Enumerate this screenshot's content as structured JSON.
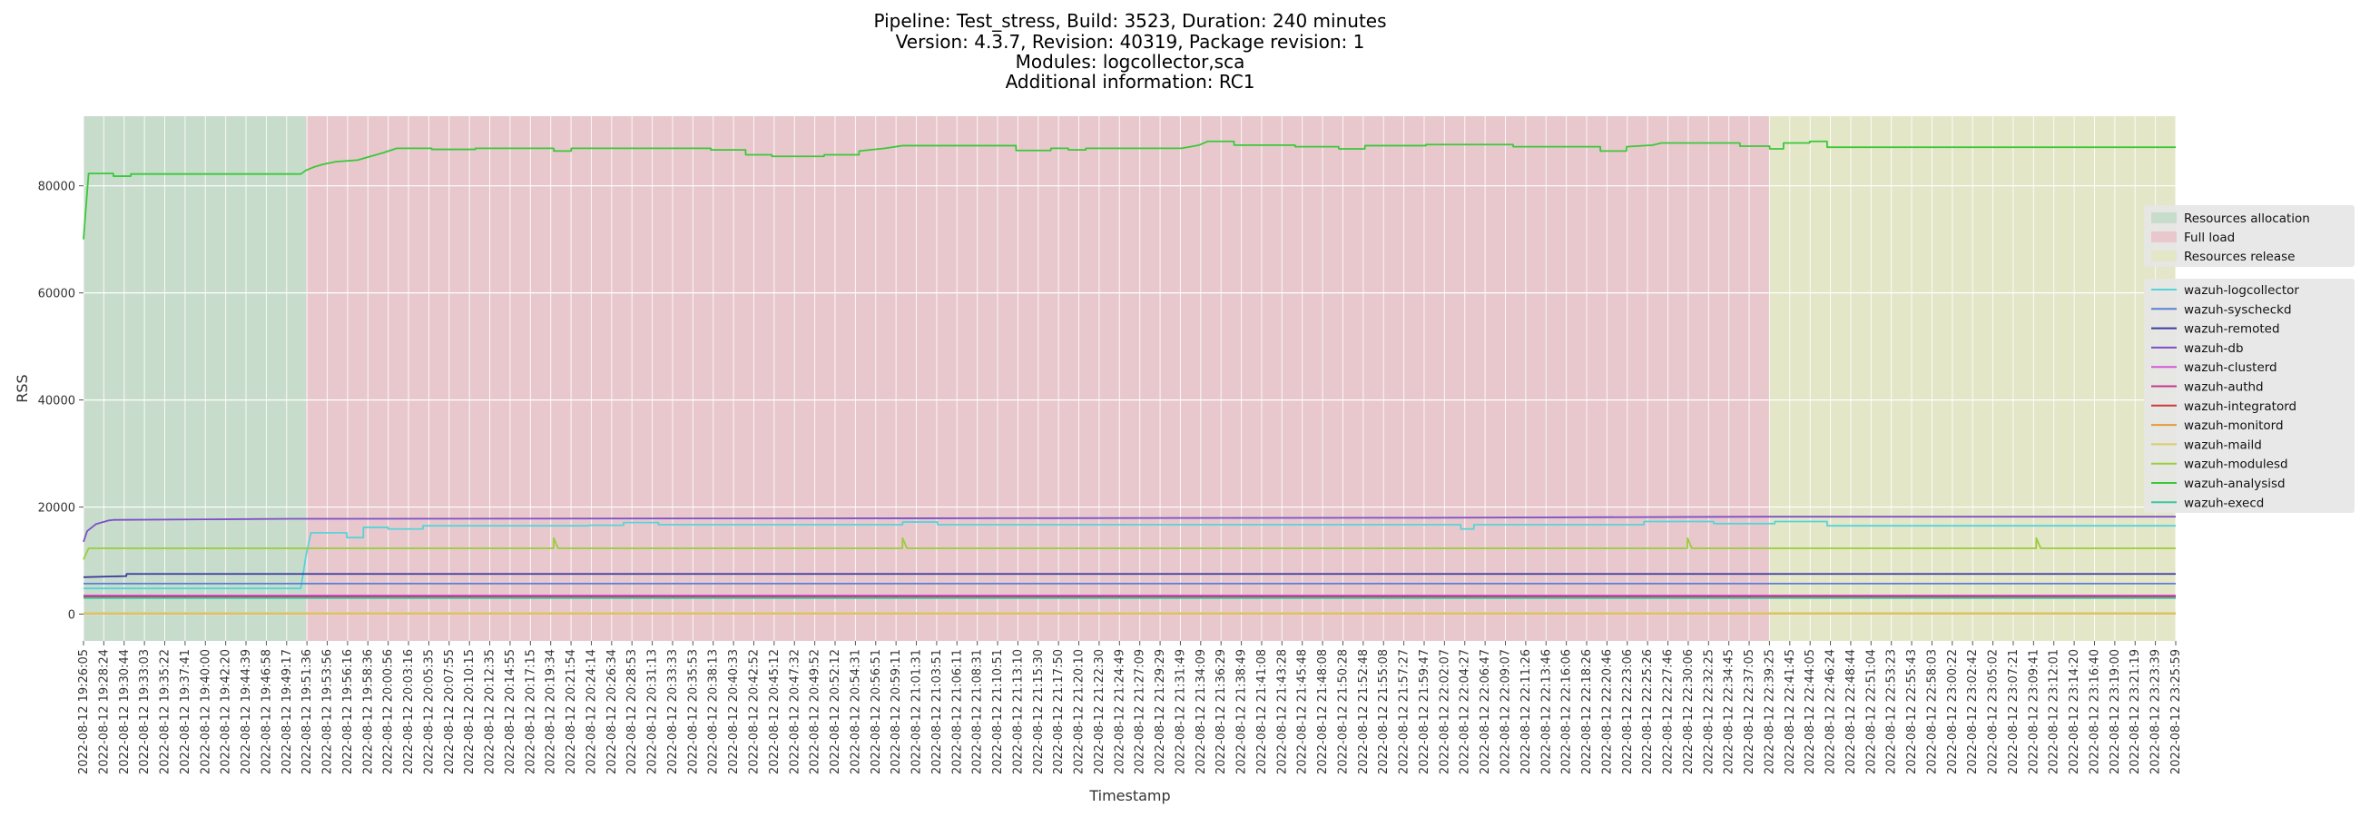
{
  "chart_data": {
    "type": "line",
    "title_lines": [
      "Pipeline: Test_stress, Build: 3523, Duration: 240 minutes",
      "Version: 4.3.7, Revision: 40319, Package revision: 1",
      "Modules: logcollector,sca",
      "Additional information: RC1"
    ],
    "xlabel": "Timestamp",
    "ylabel": "RSS",
    "x_range": [
      "2022-08-12 19:26:05",
      "2022-08-12 23:25:59"
    ],
    "ylim": [
      -5000,
      93000
    ],
    "y_ticks": [
      0,
      20000,
      40000,
      60000,
      80000
    ],
    "grid": true,
    "legend_position": "right",
    "x_tick_labels": [
      "2022-08-12 19:26:05",
      "2022-08-12 19:28:24",
      "2022-08-12 19:30:44",
      "2022-08-12 19:33:03",
      "2022-08-12 19:35:22",
      "2022-08-12 19:37:41",
      "2022-08-12 19:40:00",
      "2022-08-12 19:42:20",
      "2022-08-12 19:44:39",
      "2022-08-12 19:46:58",
      "2022-08-12 19:49:17",
      "2022-08-12 19:51:36",
      "2022-08-12 19:53:56",
      "2022-08-12 19:56:16",
      "2022-08-12 19:58:36",
      "2022-08-12 20:00:56",
      "2022-08-12 20:03:16",
      "2022-08-12 20:05:35",
      "2022-08-12 20:07:55",
      "2022-08-12 20:10:15",
      "2022-08-12 20:12:35",
      "2022-08-12 20:14:55",
      "2022-08-12 20:17:15",
      "2022-08-12 20:19:34",
      "2022-08-12 20:21:54",
      "2022-08-12 20:24:14",
      "2022-08-12 20:26:34",
      "2022-08-12 20:28:53",
      "2022-08-12 20:31:13",
      "2022-08-12 20:33:33",
      "2022-08-12 20:35:53",
      "2022-08-12 20:38:13",
      "2022-08-12 20:40:33",
      "2022-08-12 20:42:52",
      "2022-08-12 20:45:12",
      "2022-08-12 20:47:32",
      "2022-08-12 20:49:52",
      "2022-08-12 20:52:12",
      "2022-08-12 20:54:31",
      "2022-08-12 20:56:51",
      "2022-08-12 20:59:11",
      "2022-08-12 21:01:31",
      "2022-08-12 21:03:51",
      "2022-08-12 21:06:11",
      "2022-08-12 21:08:31",
      "2022-08-12 21:10:51",
      "2022-08-12 21:13:10",
      "2022-08-12 21:15:30",
      "2022-08-12 21:17:50",
      "2022-08-12 21:20:10",
      "2022-08-12 21:22:30",
      "2022-08-12 21:24:49",
      "2022-08-12 21:27:09",
      "2022-08-12 21:29:29",
      "2022-08-12 21:31:49",
      "2022-08-12 21:34:09",
      "2022-08-12 21:36:29",
      "2022-08-12 21:38:49",
      "2022-08-12 21:41:08",
      "2022-08-12 21:43:28",
      "2022-08-12 21:45:48",
      "2022-08-12 21:48:08",
      "2022-08-12 21:50:28",
      "2022-08-12 21:52:48",
      "2022-08-12 21:55:08",
      "2022-08-12 21:57:27",
      "2022-08-12 21:59:47",
      "2022-08-12 22:02:07",
      "2022-08-12 22:04:27",
      "2022-08-12 22:06:47",
      "2022-08-12 22:09:07",
      "2022-08-12 22:11:26",
      "2022-08-12 22:13:46",
      "2022-08-12 22:16:06",
      "2022-08-12 22:18:26",
      "2022-08-12 22:20:46",
      "2022-08-12 22:23:06",
      "2022-08-12 22:25:26",
      "2022-08-12 22:27:46",
      "2022-08-12 22:30:06",
      "2022-08-12 22:32:25",
      "2022-08-12 22:34:45",
      "2022-08-12 22:37:05",
      "2022-08-12 22:39:25",
      "2022-08-12 22:41:45",
      "2022-08-12 22:44:05",
      "2022-08-12 22:46:24",
      "2022-08-12 22:48:44",
      "2022-08-12 22:51:04",
      "2022-08-12 22:53:23",
      "2022-08-12 22:55:43",
      "2022-08-12 22:58:03",
      "2022-08-12 23:00:22",
      "2022-08-12 23:02:42",
      "2022-08-12 23:05:02",
      "2022-08-12 23:07:21",
      "2022-08-12 23:09:41",
      "2022-08-12 23:12:01",
      "2022-08-12 23:14:20",
      "2022-08-12 23:16:40",
      "2022-08-12 23:19:00",
      "2022-08-12 23:21:19",
      "2022-08-12 23:23:39",
      "2022-08-12 23:25:59"
    ],
    "phases": [
      {
        "name": "Resources allocation",
        "start": "2022-08-12 19:26:05",
        "end": "2022-08-12 19:51:36",
        "color": "#c8dccc"
      },
      {
        "name": "Full load",
        "start": "2022-08-12 19:51:36",
        "end": "2022-08-12 22:39:25",
        "color": "#e8c8cc"
      },
      {
        "name": "Resources release",
        "start": "2022-08-12 22:39:25",
        "end": "2022-08-12 23:25:59",
        "color": "#e4e6c8"
      }
    ],
    "series": [
      {
        "name": "wazuh-logcollector",
        "color": "#56d4d8",
        "points": [
          [
            "2022-08-12 19:26:05",
            4800
          ],
          [
            "2022-08-12 19:51:00",
            4800
          ],
          [
            "2022-08-12 19:51:36",
            11000
          ],
          [
            "2022-08-12 19:52:10",
            15200
          ],
          [
            "2022-08-12 19:56:16",
            15200
          ],
          [
            "2022-08-12 19:56:17",
            14300
          ],
          [
            "2022-08-12 19:58:10",
            14300
          ],
          [
            "2022-08-12 19:58:11",
            16200
          ],
          [
            "2022-08-12 20:01:00",
            16200
          ],
          [
            "2022-08-12 20:01:01",
            15900
          ],
          [
            "2022-08-12 20:05:00",
            15900
          ],
          [
            "2022-08-12 20:05:01",
            16500
          ],
          [
            "2022-08-12 20:24:00",
            16500
          ],
          [
            "2022-08-12 20:24:01",
            16600
          ],
          [
            "2022-08-12 20:28:00",
            16600
          ],
          [
            "2022-08-12 20:28:01",
            17100
          ],
          [
            "2022-08-12 20:32:00",
            17100
          ],
          [
            "2022-08-12 20:32:01",
            16700
          ],
          [
            "2022-08-12 21:00:00",
            16700
          ],
          [
            "2022-08-12 21:00:01",
            17200
          ],
          [
            "2022-08-12 21:04:00",
            17200
          ],
          [
            "2022-08-12 21:04:01",
            16700
          ],
          [
            "2022-08-12 22:04:00",
            16700
          ],
          [
            "2022-08-12 22:04:01",
            15900
          ],
          [
            "2022-08-12 22:05:30",
            15900
          ],
          [
            "2022-08-12 22:05:31",
            16700
          ],
          [
            "2022-08-12 22:25:00",
            16700
          ],
          [
            "2022-08-12 22:25:01",
            17300
          ],
          [
            "2022-08-12 22:33:00",
            17300
          ],
          [
            "2022-08-12 22:33:01",
            16900
          ],
          [
            "2022-08-12 22:40:00",
            16900
          ],
          [
            "2022-08-12 22:40:01",
            17300
          ],
          [
            "2022-08-12 22:46:00",
            17300
          ],
          [
            "2022-08-12 22:46:01",
            16500
          ],
          [
            "2022-08-12 23:25:59",
            16500
          ]
        ]
      },
      {
        "name": "wazuh-syscheckd",
        "color": "#5b7fd6",
        "points": [
          [
            "2022-08-12 19:26:05",
            5700
          ],
          [
            "2022-08-12 23:25:59",
            5700
          ]
        ]
      },
      {
        "name": "wazuh-remoted",
        "color": "#3a3aa0",
        "points": [
          [
            "2022-08-12 19:26:05",
            6900
          ],
          [
            "2022-08-12 19:31:00",
            7100
          ],
          [
            "2022-08-12 19:31:01",
            7500
          ],
          [
            "2022-08-12 23:25:59",
            7500
          ]
        ]
      },
      {
        "name": "wazuh-db",
        "color": "#7b4fc8",
        "points": [
          [
            "2022-08-12 19:26:05",
            13500
          ],
          [
            "2022-08-12 19:26:30",
            15500
          ],
          [
            "2022-08-12 19:27:30",
            16800
          ],
          [
            "2022-08-12 19:29:00",
            17500
          ],
          [
            "2022-08-12 19:29:30",
            17600
          ],
          [
            "2022-08-12 19:40:00",
            17700
          ],
          [
            "2022-08-12 19:50:00",
            17800
          ],
          [
            "2022-08-12 21:00:00",
            17900
          ],
          [
            "2022-08-12 22:00:00",
            18000
          ],
          [
            "2022-08-12 22:40:00",
            18200
          ],
          [
            "2022-08-12 23:25:59",
            18200
          ]
        ]
      },
      {
        "name": "wazuh-clusterd",
        "color": "#d25ad6",
        "points": [
          [
            "2022-08-12 19:26:05",
            3500
          ],
          [
            "2022-08-12 23:25:59",
            3500
          ]
        ]
      },
      {
        "name": "wazuh-authd",
        "color": "#c23a8a",
        "points": [
          [
            "2022-08-12 19:26:05",
            3300
          ],
          [
            "2022-08-12 23:25:59",
            3300
          ]
        ]
      },
      {
        "name": "wazuh-integratord",
        "color": "#c83a3a",
        "points": [
          [
            "2022-08-12 19:26:05",
            3100
          ],
          [
            "2022-08-12 23:25:59",
            3100
          ]
        ]
      },
      {
        "name": "wazuh-monitord",
        "color": "#e49a3a",
        "points": [
          [
            "2022-08-12 19:26:05",
            100
          ],
          [
            "2022-08-12 23:25:59",
            100
          ]
        ]
      },
      {
        "name": "wazuh-maild",
        "color": "#d8cc6a",
        "points": [
          [
            "2022-08-12 19:26:05",
            200
          ],
          [
            "2022-08-12 23:25:59",
            200
          ]
        ]
      },
      {
        "name": "wazuh-modulesd",
        "color": "#9acd3a",
        "points": [
          [
            "2022-08-12 19:26:05",
            10200
          ],
          [
            "2022-08-12 19:26:40",
            12300
          ],
          [
            "2022-08-12 20:19:59",
            12300
          ],
          [
            "2022-08-12 20:20:00",
            14200
          ],
          [
            "2022-08-12 20:20:30",
            12300
          ],
          [
            "2022-08-12 20:59:59",
            12300
          ],
          [
            "2022-08-12 21:00:00",
            14200
          ],
          [
            "2022-08-12 21:00:30",
            12300
          ],
          [
            "2022-08-12 22:29:59",
            12300
          ],
          [
            "2022-08-12 22:30:00",
            14200
          ],
          [
            "2022-08-12 22:30:30",
            12300
          ],
          [
            "2022-08-12 23:09:59",
            12300
          ],
          [
            "2022-08-12 23:10:00",
            14200
          ],
          [
            "2022-08-12 23:10:30",
            12300
          ],
          [
            "2022-08-12 23:25:59",
            12300
          ]
        ]
      },
      {
        "name": "wazuh-analysisd",
        "color": "#3ac83a",
        "points": [
          [
            "2022-08-12 19:26:05",
            70000
          ],
          [
            "2022-08-12 19:26:40",
            82300
          ],
          [
            "2022-08-12 19:29:30",
            82300
          ],
          [
            "2022-08-12 19:29:31",
            81800
          ],
          [
            "2022-08-12 19:31:30",
            81800
          ],
          [
            "2022-08-12 19:31:31",
            82200
          ],
          [
            "2022-08-12 19:51:00",
            82200
          ],
          [
            "2022-08-12 19:51:36",
            82900
          ],
          [
            "2022-08-12 19:52:30",
            83500
          ],
          [
            "2022-08-12 19:53:30",
            84000
          ],
          [
            "2022-08-12 19:55:00",
            84500
          ],
          [
            "2022-08-12 19:57:30",
            84800
          ],
          [
            "2022-08-12 19:59:00",
            85500
          ],
          [
            "2022-08-12 20:00:30",
            86200
          ],
          [
            "2022-08-12 20:02:00",
            87000
          ],
          [
            "2022-08-12 20:06:00",
            87000
          ],
          [
            "2022-08-12 20:06:01",
            86800
          ],
          [
            "2022-08-12 20:11:00",
            86800
          ],
          [
            "2022-08-12 20:11:01",
            87000
          ],
          [
            "2022-08-12 20:20:00",
            87000
          ],
          [
            "2022-08-12 20:20:01",
            86500
          ],
          [
            "2022-08-12 20:22:00",
            86500
          ],
          [
            "2022-08-12 20:22:01",
            87000
          ],
          [
            "2022-08-12 20:38:00",
            87000
          ],
          [
            "2022-08-12 20:38:01",
            86700
          ],
          [
            "2022-08-12 20:42:00",
            86700
          ],
          [
            "2022-08-12 20:42:01",
            85800
          ],
          [
            "2022-08-12 20:45:00",
            85800
          ],
          [
            "2022-08-12 20:45:01",
            85500
          ],
          [
            "2022-08-12 20:51:00",
            85500
          ],
          [
            "2022-08-12 20:51:01",
            85800
          ],
          [
            "2022-08-12 20:55:00",
            85800
          ],
          [
            "2022-08-12 20:55:01",
            86500
          ],
          [
            "2022-08-12 20:58:00",
            87000
          ],
          [
            "2022-08-12 21:00:00",
            87500
          ],
          [
            "2022-08-12 21:13:00",
            87500
          ],
          [
            "2022-08-12 21:13:01",
            86600
          ],
          [
            "2022-08-12 21:17:00",
            86600
          ],
          [
            "2022-08-12 21:17:01",
            87000
          ],
          [
            "2022-08-12 21:19:00",
            87000
          ],
          [
            "2022-08-12 21:19:01",
            86700
          ],
          [
            "2022-08-12 21:21:00",
            86700
          ],
          [
            "2022-08-12 21:21:01",
            87000
          ],
          [
            "2022-08-12 21:32:00",
            87000
          ],
          [
            "2022-08-12 21:34:00",
            87600
          ],
          [
            "2022-08-12 21:35:00",
            88300
          ],
          [
            "2022-08-12 21:38:00",
            88300
          ],
          [
            "2022-08-12 21:38:01",
            87600
          ],
          [
            "2022-08-12 21:45:00",
            87600
          ],
          [
            "2022-08-12 21:45:01",
            87300
          ],
          [
            "2022-08-12 21:50:00",
            87300
          ],
          [
            "2022-08-12 21:50:01",
            86900
          ],
          [
            "2022-08-12 21:53:00",
            86900
          ],
          [
            "2022-08-12 21:53:01",
            87500
          ],
          [
            "2022-08-12 22:00:00",
            87500
          ],
          [
            "2022-08-12 22:00:01",
            87700
          ],
          [
            "2022-08-12 22:10:00",
            87700
          ],
          [
            "2022-08-12 22:10:01",
            87300
          ],
          [
            "2022-08-12 22:20:00",
            87300
          ],
          [
            "2022-08-12 22:20:01",
            86500
          ],
          [
            "2022-08-12 22:23:00",
            86500
          ],
          [
            "2022-08-12 22:23:01",
            87300
          ],
          [
            "2022-08-12 22:26:00",
            87600
          ],
          [
            "2022-08-12 22:27:00",
            88000
          ],
          [
            "2022-08-12 22:36:00",
            88000
          ],
          [
            "2022-08-12 22:36:01",
            87400
          ],
          [
            "2022-08-12 22:39:25",
            87400
          ],
          [
            "2022-08-12 22:39:26",
            86900
          ],
          [
            "2022-08-12 22:41:00",
            86900
          ],
          [
            "2022-08-12 22:41:01",
            88000
          ],
          [
            "2022-08-12 22:44:00",
            88000
          ],
          [
            "2022-08-12 22:44:01",
            88300
          ],
          [
            "2022-08-12 22:46:00",
            88300
          ],
          [
            "2022-08-12 22:46:01",
            87200
          ],
          [
            "2022-08-12 23:25:59",
            87200
          ]
        ]
      },
      {
        "name": "wazuh-execd",
        "color": "#3ac8a0",
        "points": [
          [
            "2022-08-12 19:26:05",
            3000
          ],
          [
            "2022-08-12 23:25:59",
            3000
          ]
        ]
      }
    ]
  }
}
